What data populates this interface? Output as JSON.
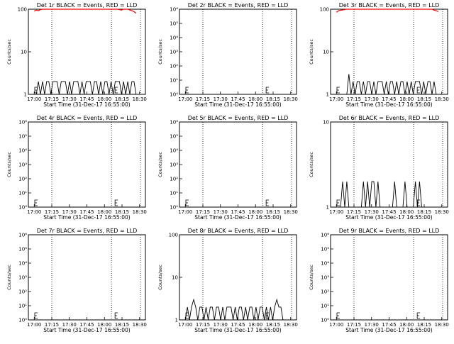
{
  "chart_data": [
    {
      "type": "line",
      "title": "Det 1r BLACK = Events, RED = LLD",
      "xlabel": "Start Time (31-Dec-17 16:55:00)",
      "ylabel": "Counts/sec",
      "yscale": "log",
      "ylim": [
        1,
        100
      ],
      "yticks": [
        {
          "v": 1,
          "t": "1"
        },
        {
          "v": 10,
          "t": "10"
        },
        {
          "v": 100,
          "t": "100"
        }
      ],
      "xticks": [
        "17:00",
        "17:15",
        "17:30",
        "17:45",
        "18:00",
        "18:15",
        "18:30"
      ],
      "vlines": [
        17.25,
        18.1
      ],
      "series": [
        {
          "name": "Events",
          "color": "#000000",
          "values": [
            0,
            1,
            2,
            1,
            2,
            1,
            2,
            2,
            1,
            2,
            2,
            2,
            1,
            2,
            2,
            2,
            1,
            2,
            1,
            2,
            2,
            2,
            1,
            2,
            1,
            2,
            2,
            2,
            1,
            2,
            2,
            1,
            2,
            1,
            2,
            2,
            1,
            2,
            1,
            2,
            2,
            2,
            1,
            2,
            1,
            2,
            1,
            2,
            2,
            1
          ]
        },
        {
          "name": "LLD",
          "color": "#ff0000",
          "values": [
            90,
            95,
            92,
            98,
            100,
            100,
            100,
            100,
            100,
            100,
            100,
            100,
            100,
            100,
            100,
            100,
            100,
            100,
            100,
            100,
            100,
            100,
            100,
            100,
            100,
            100,
            100,
            100,
            100,
            100,
            100,
            100,
            100,
            100,
            100,
            100,
            100,
            100,
            100,
            100,
            100,
            98,
            95,
            100,
            100,
            100,
            96,
            92,
            88,
            80
          ]
        }
      ]
    },
    {
      "type": "line",
      "title": "Det 2r BLACK = Events, RED = LLD",
      "xlabel": "Start Time (31-Dec-17 16:55:00)",
      "ylabel": "Counts/sec",
      "yscale": "log",
      "ylim": [
        1,
        1000000
      ],
      "yticks": [
        {
          "v": 1,
          "t": "10⁰"
        },
        {
          "v": 10,
          "t": "10¹"
        },
        {
          "v": 100,
          "t": "10²"
        },
        {
          "v": 1000,
          "t": "10³"
        },
        {
          "v": 10000,
          "t": "10⁴"
        },
        {
          "v": 100000,
          "t": "10⁵"
        },
        {
          "v": 1000000,
          "t": "10⁶"
        }
      ],
      "xticks": [
        "17:00",
        "17:15",
        "17:30",
        "17:45",
        "18:00",
        "18:15",
        "18:30"
      ],
      "vlines": [
        17.25,
        18.1
      ],
      "series": []
    },
    {
      "type": "line",
      "title": "Det 3r BLACK = Events, RED = LLD",
      "xlabel": "Start Time (31-Dec-17 16:55:00)",
      "ylabel": "Counts/sec",
      "yscale": "log",
      "ylim": [
        1,
        100
      ],
      "yticks": [
        {
          "v": 1,
          "t": "1"
        },
        {
          "v": 10,
          "t": "10"
        },
        {
          "v": 100,
          "t": "100"
        }
      ],
      "xticks": [
        "17:00",
        "17:15",
        "17:30",
        "17:45",
        "18:00",
        "18:15",
        "18:30"
      ],
      "vlines": [
        17.25,
        18.1
      ],
      "series": [
        {
          "name": "Events",
          "color": "#000000",
          "values": [
            0,
            0,
            0,
            0,
            0,
            0,
            3,
            1,
            2,
            1,
            2,
            2,
            1,
            2,
            1,
            2,
            2,
            1,
            2,
            1,
            2,
            2,
            2,
            1,
            2,
            1,
            2,
            2,
            1,
            2,
            1,
            2,
            2,
            1,
            2,
            1,
            2,
            1,
            2,
            2,
            2,
            1,
            2,
            1,
            2,
            2,
            1,
            2,
            0,
            0
          ]
        },
        {
          "name": "LLD",
          "color": "#ff0000",
          "values": [
            85,
            92,
            95,
            96,
            98,
            100,
            100,
            100,
            100,
            100,
            100,
            100,
            100,
            100,
            100,
            100,
            100,
            100,
            100,
            100,
            100,
            100,
            100,
            100,
            100,
            100,
            100,
            100,
            100,
            100,
            100,
            100,
            100,
            100,
            100,
            100,
            100,
            100,
            100,
            100,
            100,
            100,
            100,
            100,
            100,
            100,
            100,
            95,
            92,
            88
          ]
        }
      ]
    },
    {
      "type": "line",
      "title": "Det 4r BLACK = Events, RED = LLD",
      "xlabel": "Start Time (31-Dec-17 16:55:00)",
      "ylabel": "Counts/sec",
      "yscale": "log",
      "ylim": [
        1,
        1000000
      ],
      "yticks": [
        {
          "v": 1,
          "t": "10⁰"
        },
        {
          "v": 10,
          "t": "10¹"
        },
        {
          "v": 100,
          "t": "10²"
        },
        {
          "v": 1000,
          "t": "10³"
        },
        {
          "v": 10000,
          "t": "10⁴"
        },
        {
          "v": 100000,
          "t": "10⁵"
        },
        {
          "v": 1000000,
          "t": "10⁶"
        }
      ],
      "xticks": [
        "17:00",
        "17:15",
        "17:30",
        "17:45",
        "18:00",
        "18:15",
        "18:30"
      ],
      "vlines": [
        17.25,
        18.1
      ],
      "series": []
    },
    {
      "type": "line",
      "title": "Det 5r BLACK = Events, RED = LLD",
      "xlabel": "Start Time (31-Dec-17 16:55:00)",
      "ylabel": "Counts/sec",
      "yscale": "log",
      "ylim": [
        1,
        1000000
      ],
      "yticks": [
        {
          "v": 1,
          "t": "10⁰"
        },
        {
          "v": 10,
          "t": "10¹"
        },
        {
          "v": 100,
          "t": "10²"
        },
        {
          "v": 1000,
          "t": "10³"
        },
        {
          "v": 10000,
          "t": "10⁴"
        },
        {
          "v": 100000,
          "t": "10⁵"
        },
        {
          "v": 1000000,
          "t": "10⁶"
        }
      ],
      "xticks": [
        "17:00",
        "17:15",
        "17:30",
        "17:45",
        "18:00",
        "18:15",
        "18:30"
      ],
      "vlines": [
        17.25,
        18.1
      ],
      "series": []
    },
    {
      "type": "line",
      "title": "Det 6r BLACK = Events, RED = LLD",
      "xlabel": "Start Time (31-Dec-17 16:55:00)",
      "ylabel": "Counts/sec",
      "yscale": "log",
      "ylim": [
        1,
        10
      ],
      "yticks": [
        {
          "v": 1,
          "t": "1"
        },
        {
          "v": 10,
          "t": "10"
        }
      ],
      "xticks": [
        "17:00",
        "17:15",
        "17:30",
        "17:45",
        "18:00",
        "18:15",
        "18:30"
      ],
      "vlines": [
        17.25,
        18.1
      ],
      "series": [
        {
          "name": "Events",
          "color": "#000000",
          "values": [
            0,
            1,
            1,
            2,
            1,
            2,
            1,
            1,
            1,
            1,
            1,
            1,
            1,
            2,
            1,
            2,
            1,
            2,
            2,
            1,
            2,
            1,
            1,
            1,
            1,
            1,
            1,
            1,
            2,
            1,
            1,
            1,
            1,
            2,
            1,
            1,
            1,
            1,
            2,
            1,
            2,
            1,
            1,
            1,
            1,
            1,
            1,
            1,
            1,
            1
          ]
        }
      ]
    },
    {
      "type": "line",
      "title": "Det 7r BLACK = Events, RED = LLD",
      "xlabel": "Start Time (31-Dec-17 16:55:00)",
      "ylabel": "Counts/sec",
      "yscale": "log",
      "ylim": [
        1,
        1000000
      ],
      "yticks": [
        {
          "v": 1,
          "t": "10⁰"
        },
        {
          "v": 10,
          "t": "10¹"
        },
        {
          "v": 100,
          "t": "10²"
        },
        {
          "v": 1000,
          "t": "10³"
        },
        {
          "v": 10000,
          "t": "10⁴"
        },
        {
          "v": 100000,
          "t": "10⁵"
        },
        {
          "v": 1000000,
          "t": "10⁶"
        }
      ],
      "xticks": [
        "17:00",
        "17:15",
        "17:30",
        "17:45",
        "18:00",
        "18:15",
        "18:30"
      ],
      "vlines": [
        17.25,
        18.1
      ],
      "series": []
    },
    {
      "type": "line",
      "title": "Det 8r BLACK = Events, RED = LLD",
      "xlabel": "Start Time (31-Dec-17 16:55:00)",
      "ylabel": "Counts/sec",
      "yscale": "log",
      "ylim": [
        1,
        100
      ],
      "yticks": [
        {
          "v": 1,
          "t": "1"
        },
        {
          "v": 10,
          "t": "10"
        },
        {
          "v": 100,
          "t": "100"
        }
      ],
      "xticks": [
        "17:00",
        "17:15",
        "17:30",
        "17:45",
        "18:00",
        "18:15",
        "18:30"
      ],
      "vlines": [
        17.25,
        18.1
      ],
      "series": [
        {
          "name": "Events",
          "color": "#000000",
          "values": [
            1,
            2,
            1,
            2,
            3,
            2,
            1,
            2,
            2,
            1,
            2,
            1,
            2,
            2,
            1,
            2,
            2,
            1,
            2,
            1,
            2,
            2,
            2,
            1,
            2,
            1,
            2,
            2,
            1,
            2,
            1,
            2,
            2,
            1,
            2,
            1,
            2,
            2,
            1,
            2,
            1,
            2,
            1,
            2,
            3,
            2,
            2,
            1,
            1,
            0
          ]
        }
      ]
    },
    {
      "type": "line",
      "title": "Det 9r BLACK = Events, RED = LLD",
      "xlabel": "Start Time (31-Dec-17 16:55:00)",
      "ylabel": "Counts/sec",
      "yscale": "log",
      "ylim": [
        1,
        1000000
      ],
      "yticks": [
        {
          "v": 1,
          "t": "10⁰"
        },
        {
          "v": 10,
          "t": "10¹"
        },
        {
          "v": 100,
          "t": "10²"
        },
        {
          "v": 1000,
          "t": "10³"
        },
        {
          "v": 10000,
          "t": "10⁴"
        },
        {
          "v": 100000,
          "t": "10⁵"
        },
        {
          "v": 1000000,
          "t": "10⁶"
        }
      ],
      "xticks": [
        "17:00",
        "17:15",
        "17:30",
        "17:45",
        "18:00",
        "18:15",
        "18:30"
      ],
      "vlines": [
        17.25,
        18.1
      ],
      "series": []
    }
  ]
}
